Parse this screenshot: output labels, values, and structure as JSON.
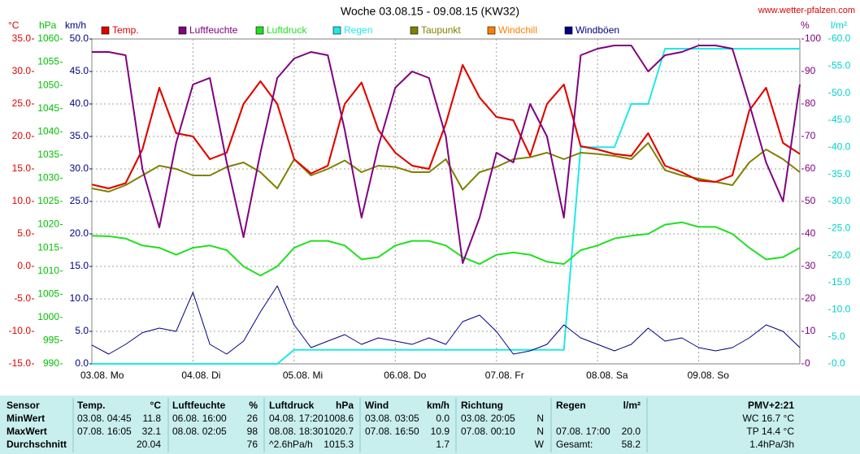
{
  "chart_data": {
    "type": "line",
    "title": "Woche 03.08.15 - 09.08.15 (KW32)",
    "source": "www.wetter-pfalzen.com",
    "grid": true,
    "x": [
      0,
      4,
      8,
      12,
      16,
      20,
      24,
      28,
      32,
      36,
      40,
      44,
      48,
      52,
      56,
      60,
      64,
      68,
      72,
      76,
      80,
      84,
      88,
      92,
      96,
      100,
      104,
      108,
      112,
      116,
      120,
      124,
      128,
      132,
      136,
      140,
      144,
      148,
      152,
      156,
      160,
      164,
      168
    ],
    "xlim": [
      0,
      168
    ],
    "xticks": [
      {
        "value": 0,
        "label": "03.08. Mo"
      },
      {
        "value": 24,
        "label": "04.08. Di"
      },
      {
        "value": 48,
        "label": "05.08. Mi"
      },
      {
        "value": 72,
        "label": "06.08. Do"
      },
      {
        "value": 96,
        "label": "07.08. Fr"
      },
      {
        "value": 120,
        "label": "08.08. Sa"
      },
      {
        "value": 144,
        "label": "09.08. So"
      }
    ],
    "axes": [
      {
        "unit": "°C",
        "color": "#e00000",
        "side": "left",
        "lim": [
          -15,
          35
        ],
        "ticks": [
          {
            "value": -15,
            "label": "-15.0"
          },
          {
            "value": -10,
            "label": "-10.0"
          },
          {
            "value": -5,
            "label": "-5.0"
          },
          {
            "value": 0,
            "label": "0.0"
          },
          {
            "value": 5,
            "label": "5.0"
          },
          {
            "value": 10,
            "label": "10.0"
          },
          {
            "value": 15,
            "label": "15.0"
          },
          {
            "value": 20,
            "label": "20.0"
          },
          {
            "value": 25,
            "label": "25.0"
          },
          {
            "value": 30,
            "label": "30.0"
          },
          {
            "value": 35,
            "label": "35.0"
          }
        ]
      },
      {
        "unit": "hPa",
        "color": "#00c000",
        "side": "left",
        "lim": [
          990,
          1060
        ],
        "ticks": [
          990,
          995,
          1000,
          1005,
          1010,
          1015,
          1020,
          1025,
          1030,
          1035,
          1040,
          1045,
          1050,
          1055,
          1060
        ]
      },
      {
        "unit": "km/h",
        "color": "#000080",
        "side": "left",
        "lim": [
          0,
          50
        ],
        "ticks": [
          {
            "value": 0,
            "label": "0.0"
          },
          {
            "value": 5,
            "label": "5.0"
          },
          {
            "value": 10,
            "label": "10.0"
          },
          {
            "value": 15,
            "label": "15.0"
          },
          {
            "value": 20,
            "label": "20.0"
          },
          {
            "value": 25,
            "label": "25.0"
          },
          {
            "value": 30,
            "label": "30.0"
          },
          {
            "value": 35,
            "label": "35.0"
          },
          {
            "value": 40,
            "label": "40.0"
          },
          {
            "value": 45,
            "label": "45.0"
          },
          {
            "value": 50,
            "label": "50.0"
          }
        ]
      },
      {
        "unit": "%",
        "color": "#800080",
        "side": "right",
        "lim": [
          0,
          100
        ],
        "ticks": [
          0,
          10,
          20,
          30,
          40,
          50,
          60,
          70,
          80,
          90,
          100
        ]
      },
      {
        "unit": "l/m²",
        "color": "#00d0d0",
        "side": "right",
        "lim": [
          0,
          60
        ],
        "ticks": [
          {
            "value": 0,
            "label": "0.0"
          },
          {
            "value": 5,
            "label": "5.0"
          },
          {
            "value": 10,
            "label": "10.0"
          },
          {
            "value": 15,
            "label": "15.0"
          },
          {
            "value": 20,
            "label": "20.0"
          },
          {
            "value": 25,
            "label": "25.0"
          },
          {
            "value": 30,
            "label": "30.0"
          },
          {
            "value": 35,
            "label": "35.0"
          },
          {
            "value": 40,
            "label": "40.0"
          },
          {
            "value": 45,
            "label": "45.0"
          },
          {
            "value": 50,
            "label": "50.0"
          },
          {
            "value": 55,
            "label": "55.0"
          },
          {
            "value": 60,
            "label": "60.0"
          }
        ]
      }
    ],
    "series": [
      {
        "name": "Temp.",
        "color": "#e00000",
        "axis": "°C",
        "values": [
          12.6,
          12.0,
          12.8,
          18,
          27.5,
          20.5,
          20,
          16.5,
          17.5,
          25,
          28.5,
          25,
          16.5,
          14.3,
          15.5,
          25,
          28.3,
          21,
          17.5,
          15.5,
          15,
          22,
          31,
          26,
          23,
          22.5,
          17,
          25,
          28,
          18.5,
          18,
          17.3,
          17,
          20.5,
          15.5,
          14.5,
          13.2,
          13,
          14,
          24,
          27.5,
          19,
          17.3
        ]
      },
      {
        "name": "Luftfeuchte",
        "color": "#800080",
        "axis": "%",
        "values": [
          96,
          96,
          95,
          60,
          42,
          68,
          86,
          88,
          62,
          39,
          65,
          88,
          94,
          96,
          95,
          72,
          45,
          67,
          85,
          90,
          88,
          70,
          31,
          45,
          65,
          62,
          80,
          70,
          45,
          95,
          97,
          98,
          98,
          90,
          95,
          96,
          98,
          98,
          97,
          80,
          62,
          50,
          86
        ]
      },
      {
        "name": "Luftdruck",
        "color": "#20e020",
        "axis": "hPa",
        "values": [
          1017.6,
          1017.5,
          1017,
          1015.5,
          1015,
          1013.5,
          1015,
          1015.5,
          1014.5,
          1011,
          1009,
          1011,
          1015,
          1016.5,
          1016.5,
          1015.5,
          1012.5,
          1013,
          1015.5,
          1016.5,
          1016.5,
          1015.5,
          1013,
          1011.5,
          1013.5,
          1014,
          1013.5,
          1012,
          1011.5,
          1014.5,
          1015.5,
          1017,
          1017.6,
          1018,
          1020,
          1020.5,
          1019.5,
          1019.5,
          1018,
          1015,
          1012.5,
          1013,
          1015
        ]
      },
      {
        "name": "Regen",
        "color": "#20e8e8",
        "axis": "l/m²",
        "values": [
          0,
          0,
          0,
          0,
          0,
          0,
          0,
          0,
          0,
          0,
          0,
          0,
          2.6,
          2.6,
          2.6,
          2.6,
          2.6,
          2.6,
          2.6,
          2.6,
          2.6,
          2.6,
          2.6,
          2.6,
          2.6,
          2.6,
          2.6,
          2.6,
          2.6,
          40,
          40,
          40,
          48,
          48,
          58.2,
          58.2,
          58.2,
          58.2,
          58.2,
          58.2,
          58.2,
          58.2,
          58.2
        ]
      },
      {
        "name": "Taupunkt",
        "color": "#808000",
        "axis": "°C",
        "values": [
          12,
          11.5,
          12.5,
          14,
          15.5,
          15,
          14,
          14,
          15.3,
          16,
          14.5,
          12,
          16.5,
          14,
          15,
          16.3,
          14.5,
          15.5,
          15.3,
          14.5,
          14.5,
          16.5,
          11.8,
          14.5,
          15.3,
          16.5,
          16.8,
          17.5,
          16.5,
          17.5,
          17.3,
          17,
          16.5,
          19,
          14.8,
          14,
          13.5,
          13,
          12.5,
          16,
          18,
          16.5,
          14.5
        ]
      },
      {
        "name": "Windchill",
        "color": "#ff8000",
        "axis": "°C",
        "values": [
          12.6,
          12.0,
          12.8,
          18,
          27.5,
          20.5,
          20,
          16.5,
          17.5,
          25,
          28.5,
          25,
          16.5,
          14.3,
          15.5,
          25,
          28.3,
          21,
          17.5,
          15.5,
          15,
          22,
          31,
          26,
          23,
          22.5,
          17,
          25,
          28,
          18.5,
          18,
          17.3,
          17,
          20.5,
          15.5,
          14.5,
          13.2,
          13,
          14,
          24,
          27.5,
          19,
          17.3
        ]
      },
      {
        "name": "Windböen",
        "color": "#000080",
        "axis": "km/h",
        "values": [
          2.9,
          1.5,
          3,
          4.8,
          5.5,
          5,
          11,
          3,
          1.5,
          3.5,
          8,
          12,
          6,
          2.5,
          3.5,
          4.5,
          3,
          4,
          3.5,
          3,
          4,
          3,
          6.5,
          7.5,
          5,
          1.5,
          2,
          3,
          6,
          4,
          3,
          2,
          3,
          5.5,
          3.5,
          4,
          2.5,
          2,
          2.5,
          4,
          6,
          5,
          2.5
        ]
      }
    ]
  },
  "table": {
    "rows": [
      [
        "Sensor",
        "Temp.",
        "°C",
        "Luftfeuchte",
        "%",
        "Luftdruck",
        "hPa",
        "Wind",
        "km/h",
        "Richtung",
        null,
        "Regen",
        "l/m²",
        "PMV+2:21"
      ],
      [
        "MinWert",
        "03.08. 04:45",
        "11.8",
        "06.08. 16:00",
        "26",
        "04.08. 17:20",
        "1008.6",
        "03.08. 03:05",
        "0.0",
        "03.08. 20:05",
        "N",
        null,
        null,
        "WC 16.7 °C"
      ],
      [
        "MaxWert",
        "07.08. 16:05",
        "32.1",
        "08.08. 02:05",
        "98",
        "08.08. 18:30",
        "1020.7",
        "07.08. 16:50",
        "10.9",
        "07.08. 00:10",
        "N",
        "07.08. 17:00",
        "20.0",
        "TP 14.4 °C"
      ],
      [
        "Durchschnitt",
        null,
        "20.04",
        null,
        "76",
        "^2.6hPa/h",
        "1015.3",
        null,
        "1.7",
        null,
        "W",
        "Gesamt:",
        "58.2",
        "1.4hPa/3h"
      ]
    ]
  }
}
